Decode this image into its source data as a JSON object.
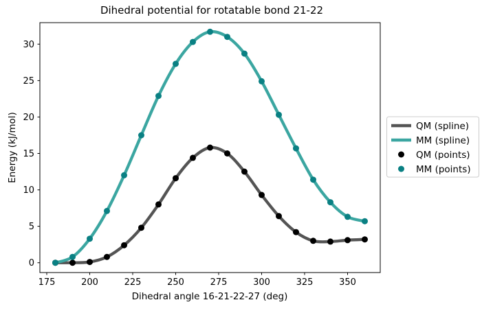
{
  "chart_data": {
    "type": "line",
    "title": "Dihedral potential for rotatable bond 21-22",
    "xlabel": "Dihedral angle 16-21-22-27 (deg)",
    "ylabel": "Energy (kJ/mol)",
    "x": [
      180,
      190,
      200,
      210,
      220,
      230,
      240,
      250,
      260,
      270,
      280,
      290,
      300,
      310,
      320,
      330,
      340,
      350,
      360
    ],
    "series": [
      {
        "name": "QM (spline)",
        "kind": "spline",
        "color": "#545454",
        "values": [
          0.0,
          0.0,
          0.1,
          0.8,
          2.4,
          4.8,
          8.0,
          11.6,
          14.4,
          15.8,
          15.0,
          12.5,
          9.3,
          6.4,
          4.2,
          3.0,
          2.9,
          3.1,
          3.2
        ]
      },
      {
        "name": "MM (spline)",
        "kind": "spline",
        "color": "#3ba6a1",
        "values": [
          0.0,
          0.8,
          3.3,
          7.1,
          12.0,
          17.5,
          22.9,
          27.3,
          30.3,
          31.7,
          31.0,
          28.7,
          24.9,
          20.3,
          15.7,
          11.4,
          8.3,
          6.3,
          5.7
        ]
      },
      {
        "name": "QM (points)",
        "kind": "scatter",
        "color": "#000000",
        "values": [
          0.0,
          0.0,
          0.1,
          0.8,
          2.4,
          4.8,
          8.0,
          11.6,
          14.4,
          15.8,
          15.0,
          12.5,
          9.3,
          6.4,
          4.2,
          3.0,
          2.9,
          3.1,
          3.2
        ]
      },
      {
        "name": "MM (points)",
        "kind": "scatter",
        "color": "#0a8083",
        "values": [
          0.0,
          0.8,
          3.3,
          7.1,
          12.0,
          17.5,
          22.9,
          27.3,
          30.3,
          31.7,
          31.0,
          28.7,
          24.9,
          20.3,
          15.7,
          11.4,
          8.3,
          6.3,
          5.7
        ]
      }
    ],
    "xticks": [
      175,
      200,
      225,
      250,
      275,
      300,
      325,
      350
    ],
    "yticks": [
      0,
      5,
      10,
      15,
      20,
      25,
      30
    ],
    "xlim": [
      171,
      369
    ],
    "ylim": [
      -1.35,
      32.95
    ],
    "grid": false,
    "legend_position": "center-right-outside",
    "colors": {
      "spine": "#000000",
      "legend_border": "#cccccc",
      "background": "#ffffff"
    }
  }
}
